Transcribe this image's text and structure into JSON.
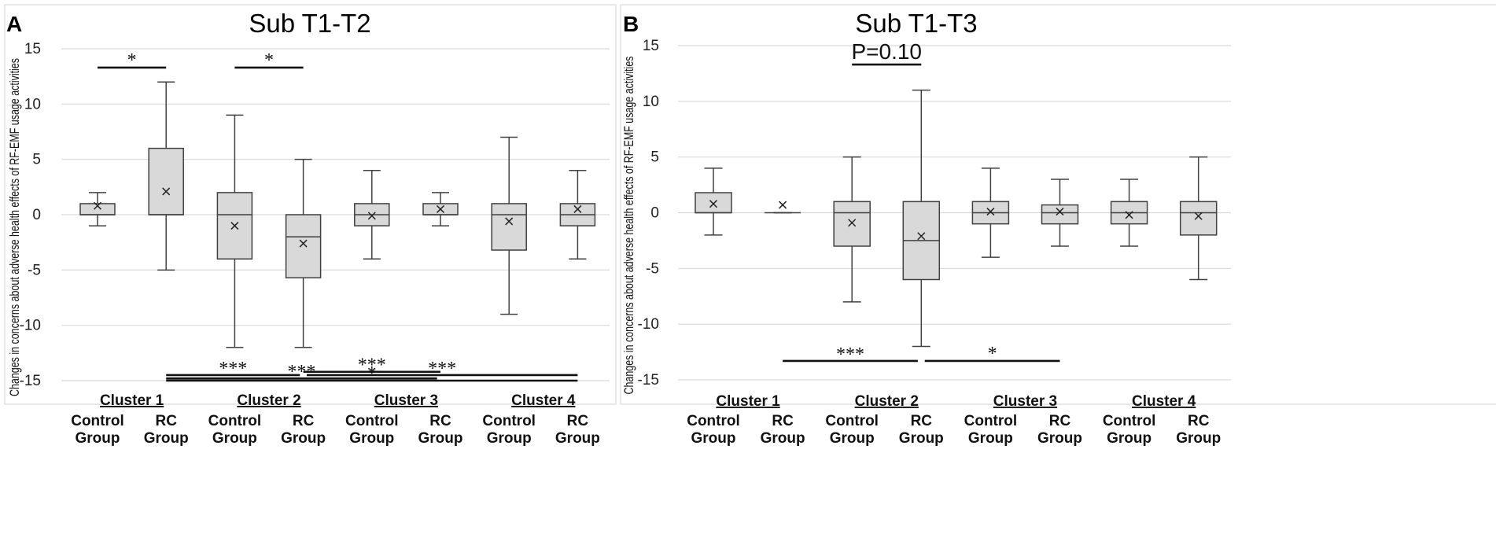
{
  "chart_data": [
    {
      "panel": "A",
      "type": "box",
      "title": "Sub T1-T2",
      "ylabel": "Changes in concerns about adverse health effects of RF-EMF usage activities",
      "ylim": [
        -15,
        15
      ],
      "yticks": [
        -15,
        -10,
        -5,
        0,
        5,
        10,
        15
      ],
      "clusters": [
        "Cluster 1",
        "Cluster 2",
        "Cluster 3",
        "Cluster 4"
      ],
      "group_label_line1": [
        "Control",
        "RC"
      ],
      "group_label_line2": [
        "Group",
        "Group"
      ],
      "series": [
        {
          "cluster": 1,
          "group": "Control Group",
          "min": -1,
          "q1": 0,
          "median": 0,
          "q3": 1,
          "max": 2,
          "mean": 0.8
        },
        {
          "cluster": 1,
          "group": "RC Group",
          "min": -5,
          "q1": 0,
          "median": 0,
          "q3": 6,
          "max": 12,
          "mean": 2.1
        },
        {
          "cluster": 2,
          "group": "Control Group",
          "min": -12,
          "q1": -4,
          "median": 0,
          "q3": 2,
          "max": 9,
          "mean": -1.0
        },
        {
          "cluster": 2,
          "group": "RC Group",
          "min": -12,
          "q1": -5.7,
          "median": -2,
          "q3": 0,
          "max": 5,
          "mean": -2.6
        },
        {
          "cluster": 3,
          "group": "Control Group",
          "min": -4,
          "q1": -1,
          "median": 0,
          "q3": 1,
          "max": 4,
          "mean": -0.1
        },
        {
          "cluster": 3,
          "group": "RC Group",
          "min": -1,
          "q1": 0,
          "median": 0,
          "q3": 1,
          "max": 2,
          "mean": 0.5
        },
        {
          "cluster": 4,
          "group": "Control Group",
          "min": -9,
          "q1": -3.2,
          "median": 0,
          "q3": 1,
          "max": 7,
          "mean": -0.6
        },
        {
          "cluster": 4,
          "group": "RC Group",
          "min": -4,
          "q1": -1,
          "median": 0,
          "q3": 1,
          "max": 4,
          "mean": 0.5
        }
      ],
      "significance": [
        {
          "label": "*",
          "y": 13.3,
          "from_box": 1,
          "to_box": 2,
          "from_offset": 0,
          "to_offset": 0
        },
        {
          "label": "*",
          "y": 13.3,
          "from_box": 3,
          "to_box": 4,
          "from_offset": 0,
          "to_offset": 0
        },
        {
          "label": "***",
          "y": -14.5,
          "from_box": 2,
          "to_box": 4,
          "from_offset": 0,
          "to_offset": -0.05
        },
        {
          "label": "***",
          "y": -14.2,
          "from_box": 4,
          "to_box": 6,
          "from_offset": 0,
          "to_offset": 0
        },
        {
          "label": "***",
          "y": -14.5,
          "from_box": 4,
          "to_box": 8,
          "from_offset": 0.05,
          "to_offset": 0
        },
        {
          "label": "***",
          "y": -14.8,
          "from_box": 2,
          "to_box": 6,
          "from_offset": 0,
          "to_offset": -0.05
        },
        {
          "label": "*",
          "y": -15.0,
          "from_box": 2,
          "to_box": 8,
          "from_offset": 0,
          "to_offset": 0
        }
      ]
    },
    {
      "panel": "B",
      "type": "box",
      "title": "Sub T1-T3",
      "ylabel": "Changes in concerns about adverse health effects of RF-EMF usage activities",
      "ylim": [
        -15,
        15
      ],
      "yticks": [
        -15,
        -10,
        -5,
        0,
        5,
        10,
        15
      ],
      "clusters": [
        "Cluster 1",
        "Cluster 2",
        "Cluster 3",
        "Cluster 4"
      ],
      "group_label_line1": [
        "Control",
        "RC"
      ],
      "group_label_line2": [
        "Group",
        "Group"
      ],
      "series": [
        {
          "cluster": 1,
          "group": "Control Group",
          "min": -2,
          "q1": 0,
          "median": 0,
          "q3": 1.8,
          "max": 4,
          "mean": 0.8
        },
        {
          "cluster": 1,
          "group": "RC Group",
          "min": 0,
          "q1": 0,
          "median": 0,
          "q3": 0,
          "max": 0,
          "mean": 0.7
        },
        {
          "cluster": 2,
          "group": "Control Group",
          "min": -8,
          "q1": -3,
          "median": 0,
          "q3": 1,
          "max": 5,
          "mean": -0.9
        },
        {
          "cluster": 2,
          "group": "RC Group",
          "min": -12,
          "q1": -6,
          "median": -2.5,
          "q3": 1,
          "max": 11,
          "mean": -2.1
        },
        {
          "cluster": 3,
          "group": "Control Group",
          "min": -4,
          "q1": -1,
          "median": 0,
          "q3": 1,
          "max": 4,
          "mean": 0.1
        },
        {
          "cluster": 3,
          "group": "RC Group",
          "min": -3,
          "q1": -1,
          "median": 0,
          "q3": 0.7,
          "max": 3,
          "mean": 0.1
        },
        {
          "cluster": 4,
          "group": "Control Group",
          "min": -3,
          "q1": -1,
          "median": 0,
          "q3": 1,
          "max": 3,
          "mean": -0.2
        },
        {
          "cluster": 4,
          "group": "RC Group",
          "min": -6,
          "q1": -2,
          "median": 0,
          "q3": 1,
          "max": 5,
          "mean": -0.3
        }
      ],
      "significance": [
        {
          "label": "P=0.10",
          "y": 13.3,
          "from_box": 3,
          "to_box": 4,
          "from_offset": 0,
          "to_offset": 0
        },
        {
          "label": "***",
          "y": -13.3,
          "from_box": 2,
          "to_box": 4,
          "from_offset": 0,
          "to_offset": -0.05
        },
        {
          "label": "*",
          "y": -13.3,
          "from_box": 4,
          "to_box": 6,
          "from_offset": 0.05,
          "to_offset": 0
        }
      ]
    }
  ]
}
